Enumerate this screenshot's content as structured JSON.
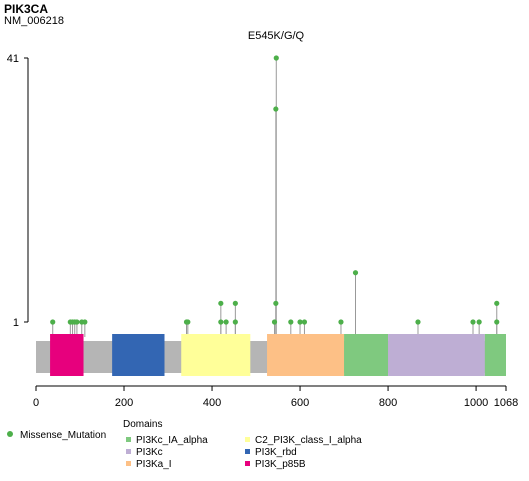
{
  "header": {
    "gene": "PIK3CA",
    "transcript": "NM_006218"
  },
  "colors": {
    "lollipop_fill": "#4daf4a",
    "stem": "#999999",
    "backbone": "#b5b5b5"
  },
  "chart_data": {
    "type": "lollipop",
    "protein_length": 1068,
    "x_ticks": [
      "0",
      "200",
      "400",
      "600",
      "800",
      "1000",
      "1068"
    ],
    "x_tick_values": [
      0,
      200,
      400,
      600,
      800,
      1000,
      1068
    ],
    "y_scale": "log",
    "y_ticks": [
      "1",
      "41"
    ],
    "y_tick_values": [
      1,
      41
    ],
    "hotspot_label": "E545K/G/Q",
    "hotspot_position": 545,
    "mutation_legend": "Missense_Mutation",
    "domains_title": "Domains",
    "domains": [
      {
        "name": "PI3K_p85B",
        "start": 32,
        "end": 108,
        "color": "#e7007d"
      },
      {
        "name": "PI3K_rbd",
        "start": 173,
        "end": 292,
        "color": "#3366b3"
      },
      {
        "name": "C2_PI3K_class_I_alpha",
        "start": 330,
        "end": 487,
        "color": "#ffff99"
      },
      {
        "name": "PI3Ka_I",
        "start": 525,
        "end": 700,
        "color": "#fdc086"
      },
      {
        "name": "PI3Kc_IA_alpha",
        "start": 700,
        "end": 800,
        "color": "#7fc97f"
      },
      {
        "name": "PI3Kc",
        "start": 800,
        "end": 1020,
        "color": "#beaed4"
      },
      {
        "name": "PI3Kc_IA_alpha",
        "start": 1020,
        "end": 1068,
        "color": "#7fc97f"
      }
    ],
    "legend_domains": [
      {
        "name": "PI3Kc_IA_alpha",
        "color": "#7fc97f"
      },
      {
        "name": "C2_PI3K_class_I_alpha",
        "color": "#ffff99"
      },
      {
        "name": "PI3Kc",
        "color": "#beaed4"
      },
      {
        "name": "PI3K_rbd",
        "color": "#3366b3"
      },
      {
        "name": "PI3Ka_I",
        "color": "#fdc086"
      },
      {
        "name": "PI3K_p85B",
        "color": "#e7007d"
      }
    ],
    "mutations": [
      {
        "position": 38,
        "count": 1
      },
      {
        "position": 78,
        "count": 1
      },
      {
        "position": 83,
        "count": 1
      },
      {
        "position": 88,
        "count": 1
      },
      {
        "position": 93,
        "count": 1
      },
      {
        "position": 104,
        "count": 1
      },
      {
        "position": 111,
        "count": 1
      },
      {
        "position": 342,
        "count": 1
      },
      {
        "position": 345,
        "count": 1
      },
      {
        "position": 420,
        "count": 1
      },
      {
        "position": 420,
        "count": 1.3
      },
      {
        "position": 432,
        "count": 1
      },
      {
        "position": 453,
        "count": 1
      },
      {
        "position": 453,
        "count": 1.3
      },
      {
        "position": 542,
        "count": 1
      },
      {
        "position": 545,
        "count": 1.3
      },
      {
        "position": 545,
        "count": 20
      },
      {
        "position": 546,
        "count": 41
      },
      {
        "position": 579,
        "count": 1
      },
      {
        "position": 600,
        "count": 1
      },
      {
        "position": 610,
        "count": 1
      },
      {
        "position": 693,
        "count": 1
      },
      {
        "position": 726,
        "count": 2
      },
      {
        "position": 868,
        "count": 1
      },
      {
        "position": 993,
        "count": 1
      },
      {
        "position": 1007,
        "count": 1
      },
      {
        "position": 1047,
        "count": 1
      },
      {
        "position": 1047,
        "count": 1.3
      }
    ]
  }
}
